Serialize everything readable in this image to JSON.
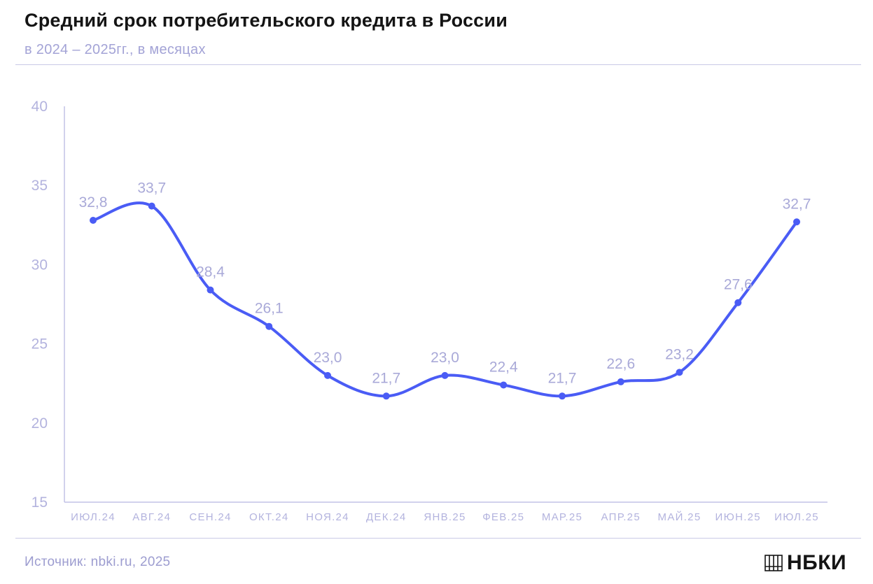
{
  "header": {
    "title": "Средний срок потребительского кредита в России",
    "subtitle": "в 2024 – 2025гг., в месяцах"
  },
  "footer": {
    "source": "Источник: nbki.ru, 2025",
    "logo_text": "НБКИ"
  },
  "colors": {
    "line": "#4a5cf5",
    "axis": "#c2c2e6",
    "tick_label": "#b3b3de",
    "data_label": "#a9a9d8"
  },
  "chart_data": {
    "type": "line",
    "title": "Средний срок потребительского кредита в России",
    "subtitle": "в 2024 – 2025гг., в месяцах",
    "categories": [
      "ИЮЛ.24",
      "АВГ.24",
      "СЕН.24",
      "ОКТ.24",
      "НОЯ.24",
      "ДЕК.24",
      "ЯНВ.25",
      "ФЕВ.25",
      "МАР.25",
      "АПР.25",
      "МАЙ.25",
      "ИЮН.25",
      "ИЮЛ.25"
    ],
    "series": [
      {
        "values": [
          32.8,
          33.7,
          28.4,
          26.1,
          23.0,
          21.7,
          23.0,
          22.4,
          21.7,
          22.6,
          23.2,
          27.6,
          32.7
        ],
        "labels": [
          "32,8",
          "33,7",
          "28,4",
          "26,1",
          "23,0",
          "21,7",
          "23,0",
          "22,4",
          "21,7",
          "22,6",
          "23,2",
          "27,6",
          "32,7"
        ]
      }
    ],
    "ylim": [
      15,
      40
    ],
    "yticks": [
      15,
      20,
      25,
      30,
      35,
      40
    ],
    "smooth": true,
    "grid": false,
    "legend": "none"
  }
}
